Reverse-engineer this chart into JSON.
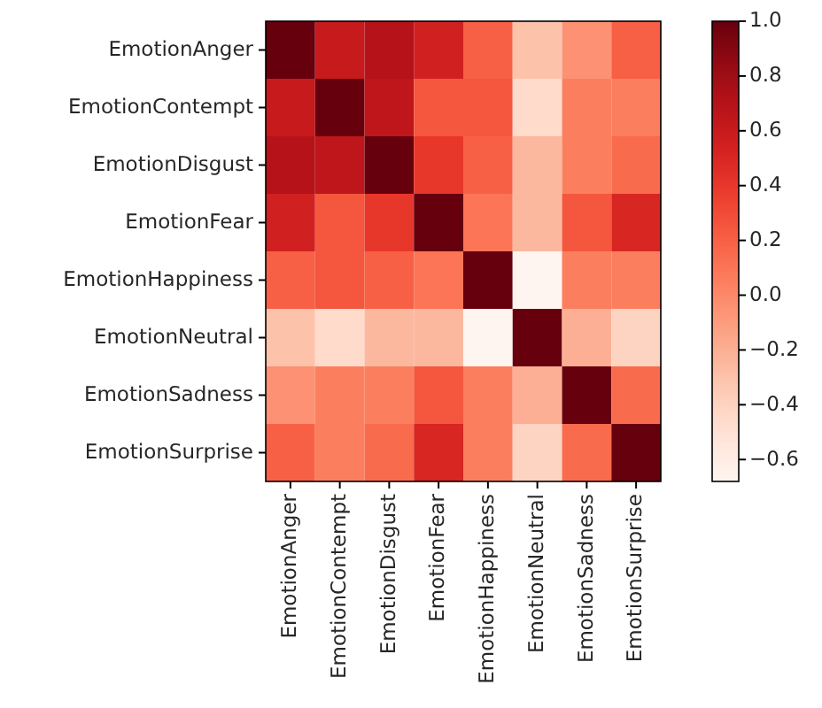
{
  "chart_data": {
    "type": "heatmap",
    "categories": [
      "EmotionAnger",
      "EmotionContempt",
      "EmotionDisgust",
      "EmotionFear",
      "EmotionHappiness",
      "EmotionNeutral",
      "EmotionSadness",
      "EmotionSurprise"
    ],
    "y_categories": [
      "EmotionAnger",
      "EmotionContempt",
      "EmotionDisgust",
      "EmotionFear",
      "EmotionHappiness",
      "EmotionNeutral",
      "EmotionSadness",
      "EmotionSurprise"
    ],
    "cells": [
      [
        1,
        0.6,
        0.7,
        0.55,
        0.2,
        -0.3,
        -0.05,
        0.2
      ],
      [
        0.6,
        1,
        0.65,
        0.25,
        0.25,
        -0.45,
        0.05,
        0.05
      ],
      [
        0.7,
        0.65,
        1,
        0.4,
        0.2,
        -0.25,
        0.05,
        0.15
      ],
      [
        0.55,
        0.25,
        0.4,
        1,
        0.1,
        -0.25,
        0.25,
        0.5
      ],
      [
        0.2,
        0.25,
        0.2,
        0.1,
        1,
        -0.68,
        0.05,
        0.05
      ],
      [
        -0.3,
        -0.45,
        -0.25,
        -0.25,
        -0.68,
        1,
        -0.2,
        -0.4
      ],
      [
        -0.05,
        0.05,
        0.05,
        0.25,
        0.05,
        -0.2,
        1,
        0.15
      ],
      [
        0.2,
        0.05,
        0.15,
        0.5,
        0.05,
        -0.4,
        0.15,
        1
      ]
    ],
    "clim": [
      -0.68,
      1
    ],
    "cticks": [
      {
        "value": -0.6,
        "label": "−0.6"
      },
      {
        "value": -0.4,
        "label": "−0.4"
      },
      {
        "value": -0.2,
        "label": "−0.2"
      },
      {
        "value": 0,
        "label": "0.0"
      },
      {
        "value": 0.2,
        "label": "0.2"
      },
      {
        "value": 0.4,
        "label": "0.4"
      },
      {
        "value": 0.6,
        "label": "0.6"
      },
      {
        "value": 0.8,
        "label": "0.8"
      },
      {
        "value": 1,
        "label": "1.0"
      }
    ]
  }
}
